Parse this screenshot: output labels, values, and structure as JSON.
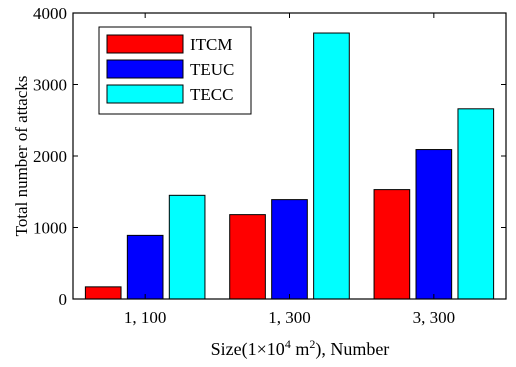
{
  "chart_data": {
    "type": "bar",
    "categories": [
      "1,  100",
      "1,  300",
      "3,  300"
    ],
    "series": [
      {
        "name": "ITCM",
        "color": "#ff0000",
        "values": [
          170,
          1180,
          1530
        ]
      },
      {
        "name": "TEUC",
        "color": "#0000ff",
        "values": [
          890,
          1390,
          2090
        ]
      },
      {
        "name": "TECC",
        "color": "#00ffff",
        "values": [
          1450,
          3720,
          2660
        ]
      }
    ],
    "xlabel": {
      "prefix": "Size(1×10",
      "sup1": "4",
      "mid": " m",
      "sup2": "2",
      "suffix": "), Number"
    },
    "ylabel": "Total number of attacks",
    "ylim": [
      0,
      4000
    ],
    "yticks": [
      0,
      1000,
      2000,
      3000,
      4000
    ],
    "legend_position": "top-left",
    "grid": false
  }
}
